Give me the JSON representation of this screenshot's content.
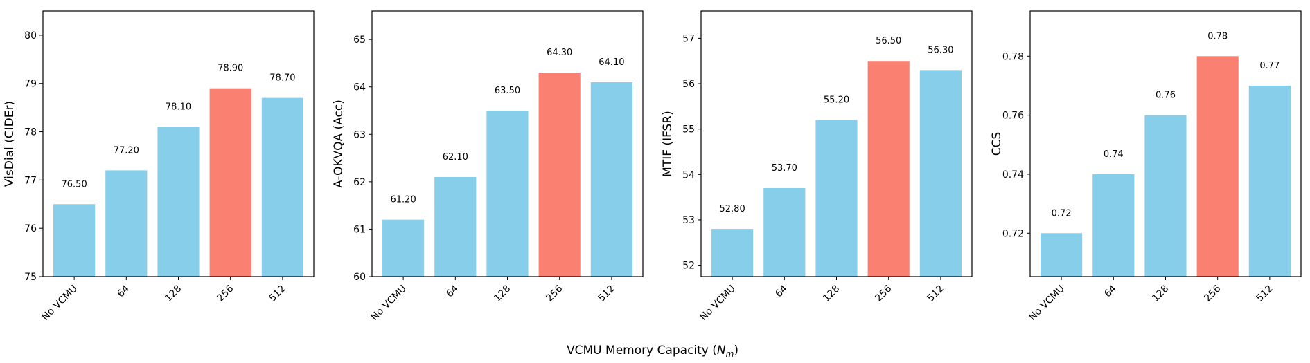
{
  "figure": {
    "xlabel_prefix": "VCMU Memory Capacity (",
    "xlabel_var": "N",
    "xlabel_sub": "m",
    "xlabel_suffix": ")"
  },
  "chart_data": [
    {
      "type": "bar",
      "categories": [
        "No VCMU",
        "64",
        "128",
        "256",
        "512"
      ],
      "values": [
        76.5,
        77.2,
        78.1,
        78.9,
        78.7
      ],
      "value_labels": [
        "76.50",
        "77.20",
        "78.10",
        "78.90",
        "78.70"
      ],
      "highlight_index": 3,
      "ylabel": "VisDial (CIDEr)",
      "ylim": [
        75,
        80.5
      ],
      "yticks": [
        75,
        76,
        77,
        78,
        79,
        80
      ],
      "ytick_labels": [
        "75",
        "76",
        "77",
        "78",
        "79",
        "80"
      ],
      "grid": false
    },
    {
      "type": "bar",
      "categories": [
        "No VCMU",
        "64",
        "128",
        "256",
        "512"
      ],
      "values": [
        61.2,
        62.1,
        63.5,
        64.3,
        64.1
      ],
      "value_labels": [
        "61.20",
        "62.10",
        "63.50",
        "64.30",
        "64.10"
      ],
      "highlight_index": 3,
      "ylabel": "A-OKVQA (Acc)",
      "ylim": [
        60,
        65.6
      ],
      "yticks": [
        60,
        61,
        62,
        63,
        64,
        65
      ],
      "ytick_labels": [
        "60",
        "61",
        "62",
        "63",
        "64",
        "65"
      ],
      "grid": false
    },
    {
      "type": "bar",
      "categories": [
        "No VCMU",
        "64",
        "128",
        "256",
        "512"
      ],
      "values": [
        52.8,
        53.7,
        55.2,
        56.5,
        56.3
      ],
      "value_labels": [
        "52.80",
        "53.70",
        "55.20",
        "56.50",
        "56.30"
      ],
      "highlight_index": 3,
      "ylabel": "MTIF (IFSR)",
      "ylim": [
        51.75,
        57.6
      ],
      "yticks": [
        52,
        53,
        54,
        55,
        56,
        57
      ],
      "ytick_labels": [
        "52",
        "53",
        "54",
        "55",
        "56",
        "57"
      ],
      "grid": false
    },
    {
      "type": "bar",
      "categories": [
        "No VCMU",
        "64",
        "128",
        "256",
        "512"
      ],
      "values": [
        0.72,
        0.74,
        0.76,
        0.78,
        0.77
      ],
      "value_labels": [
        "0.72",
        "0.74",
        "0.76",
        "0.78",
        "0.77"
      ],
      "highlight_index": 3,
      "ylabel": "CCS",
      "ylim": [
        0.7053,
        0.7953
      ],
      "yticks": [
        0.72,
        0.74,
        0.76,
        0.78
      ],
      "ytick_labels": [
        "0.72",
        "0.74",
        "0.76",
        "0.78"
      ],
      "grid": false
    }
  ],
  "colors": {
    "bar": "#87CEEB",
    "highlight": "#FA8072",
    "axis": "#000000"
  }
}
